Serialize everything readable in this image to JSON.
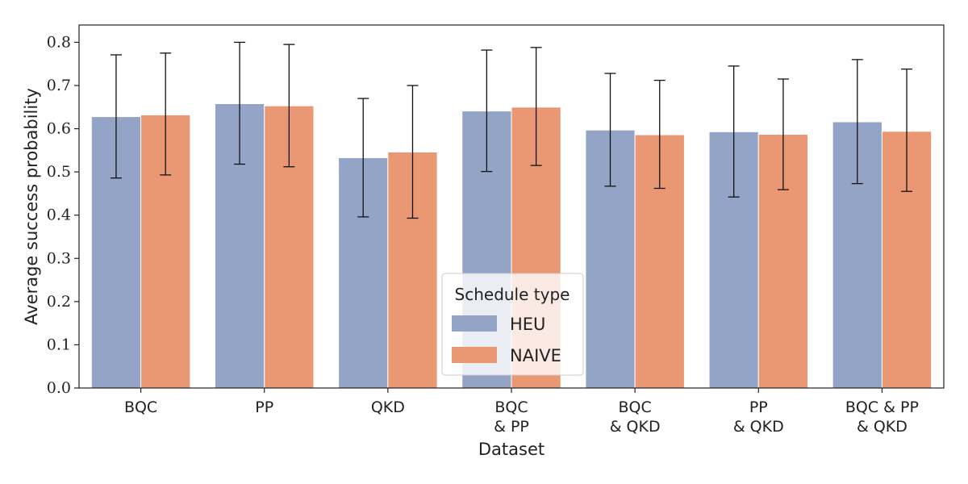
{
  "chart_data": {
    "type": "bar",
    "xlabel": "Dataset",
    "ylabel": "Average success probability",
    "ylim": [
      0,
      0.84
    ],
    "yticks": [
      "0.0",
      "0.1",
      "0.2",
      "0.3",
      "0.4",
      "0.5",
      "0.6",
      "0.7",
      "0.8"
    ],
    "grid": false,
    "categories": [
      [
        "BQC"
      ],
      [
        "PP"
      ],
      [
        "QKD"
      ],
      [
        "BQC",
        "& PP"
      ],
      [
        "BQC",
        "& QKD"
      ],
      [
        "PP",
        "& QKD"
      ],
      [
        "BQC & PP",
        "& QKD"
      ]
    ],
    "series": [
      {
        "name": "HEU",
        "color": "#94a4c6",
        "values": [
          0.628,
          0.658,
          0.533,
          0.641,
          0.597,
          0.593,
          0.616
        ],
        "error_low": [
          0.486,
          0.518,
          0.396,
          0.501,
          0.467,
          0.442,
          0.473
        ],
        "error_high": [
          0.771,
          0.8,
          0.67,
          0.782,
          0.728,
          0.745,
          0.76
        ]
      },
      {
        "name": "NAIVE",
        "color": "#e99873",
        "values": [
          0.632,
          0.653,
          0.546,
          0.65,
          0.586,
          0.587,
          0.594
        ],
        "error_low": [
          0.493,
          0.512,
          0.393,
          0.515,
          0.462,
          0.459,
          0.455
        ],
        "error_high": [
          0.775,
          0.795,
          0.7,
          0.788,
          0.712,
          0.715,
          0.738
        ]
      }
    ],
    "legend": {
      "title": "Schedule type",
      "placement": "lower-center"
    }
  }
}
